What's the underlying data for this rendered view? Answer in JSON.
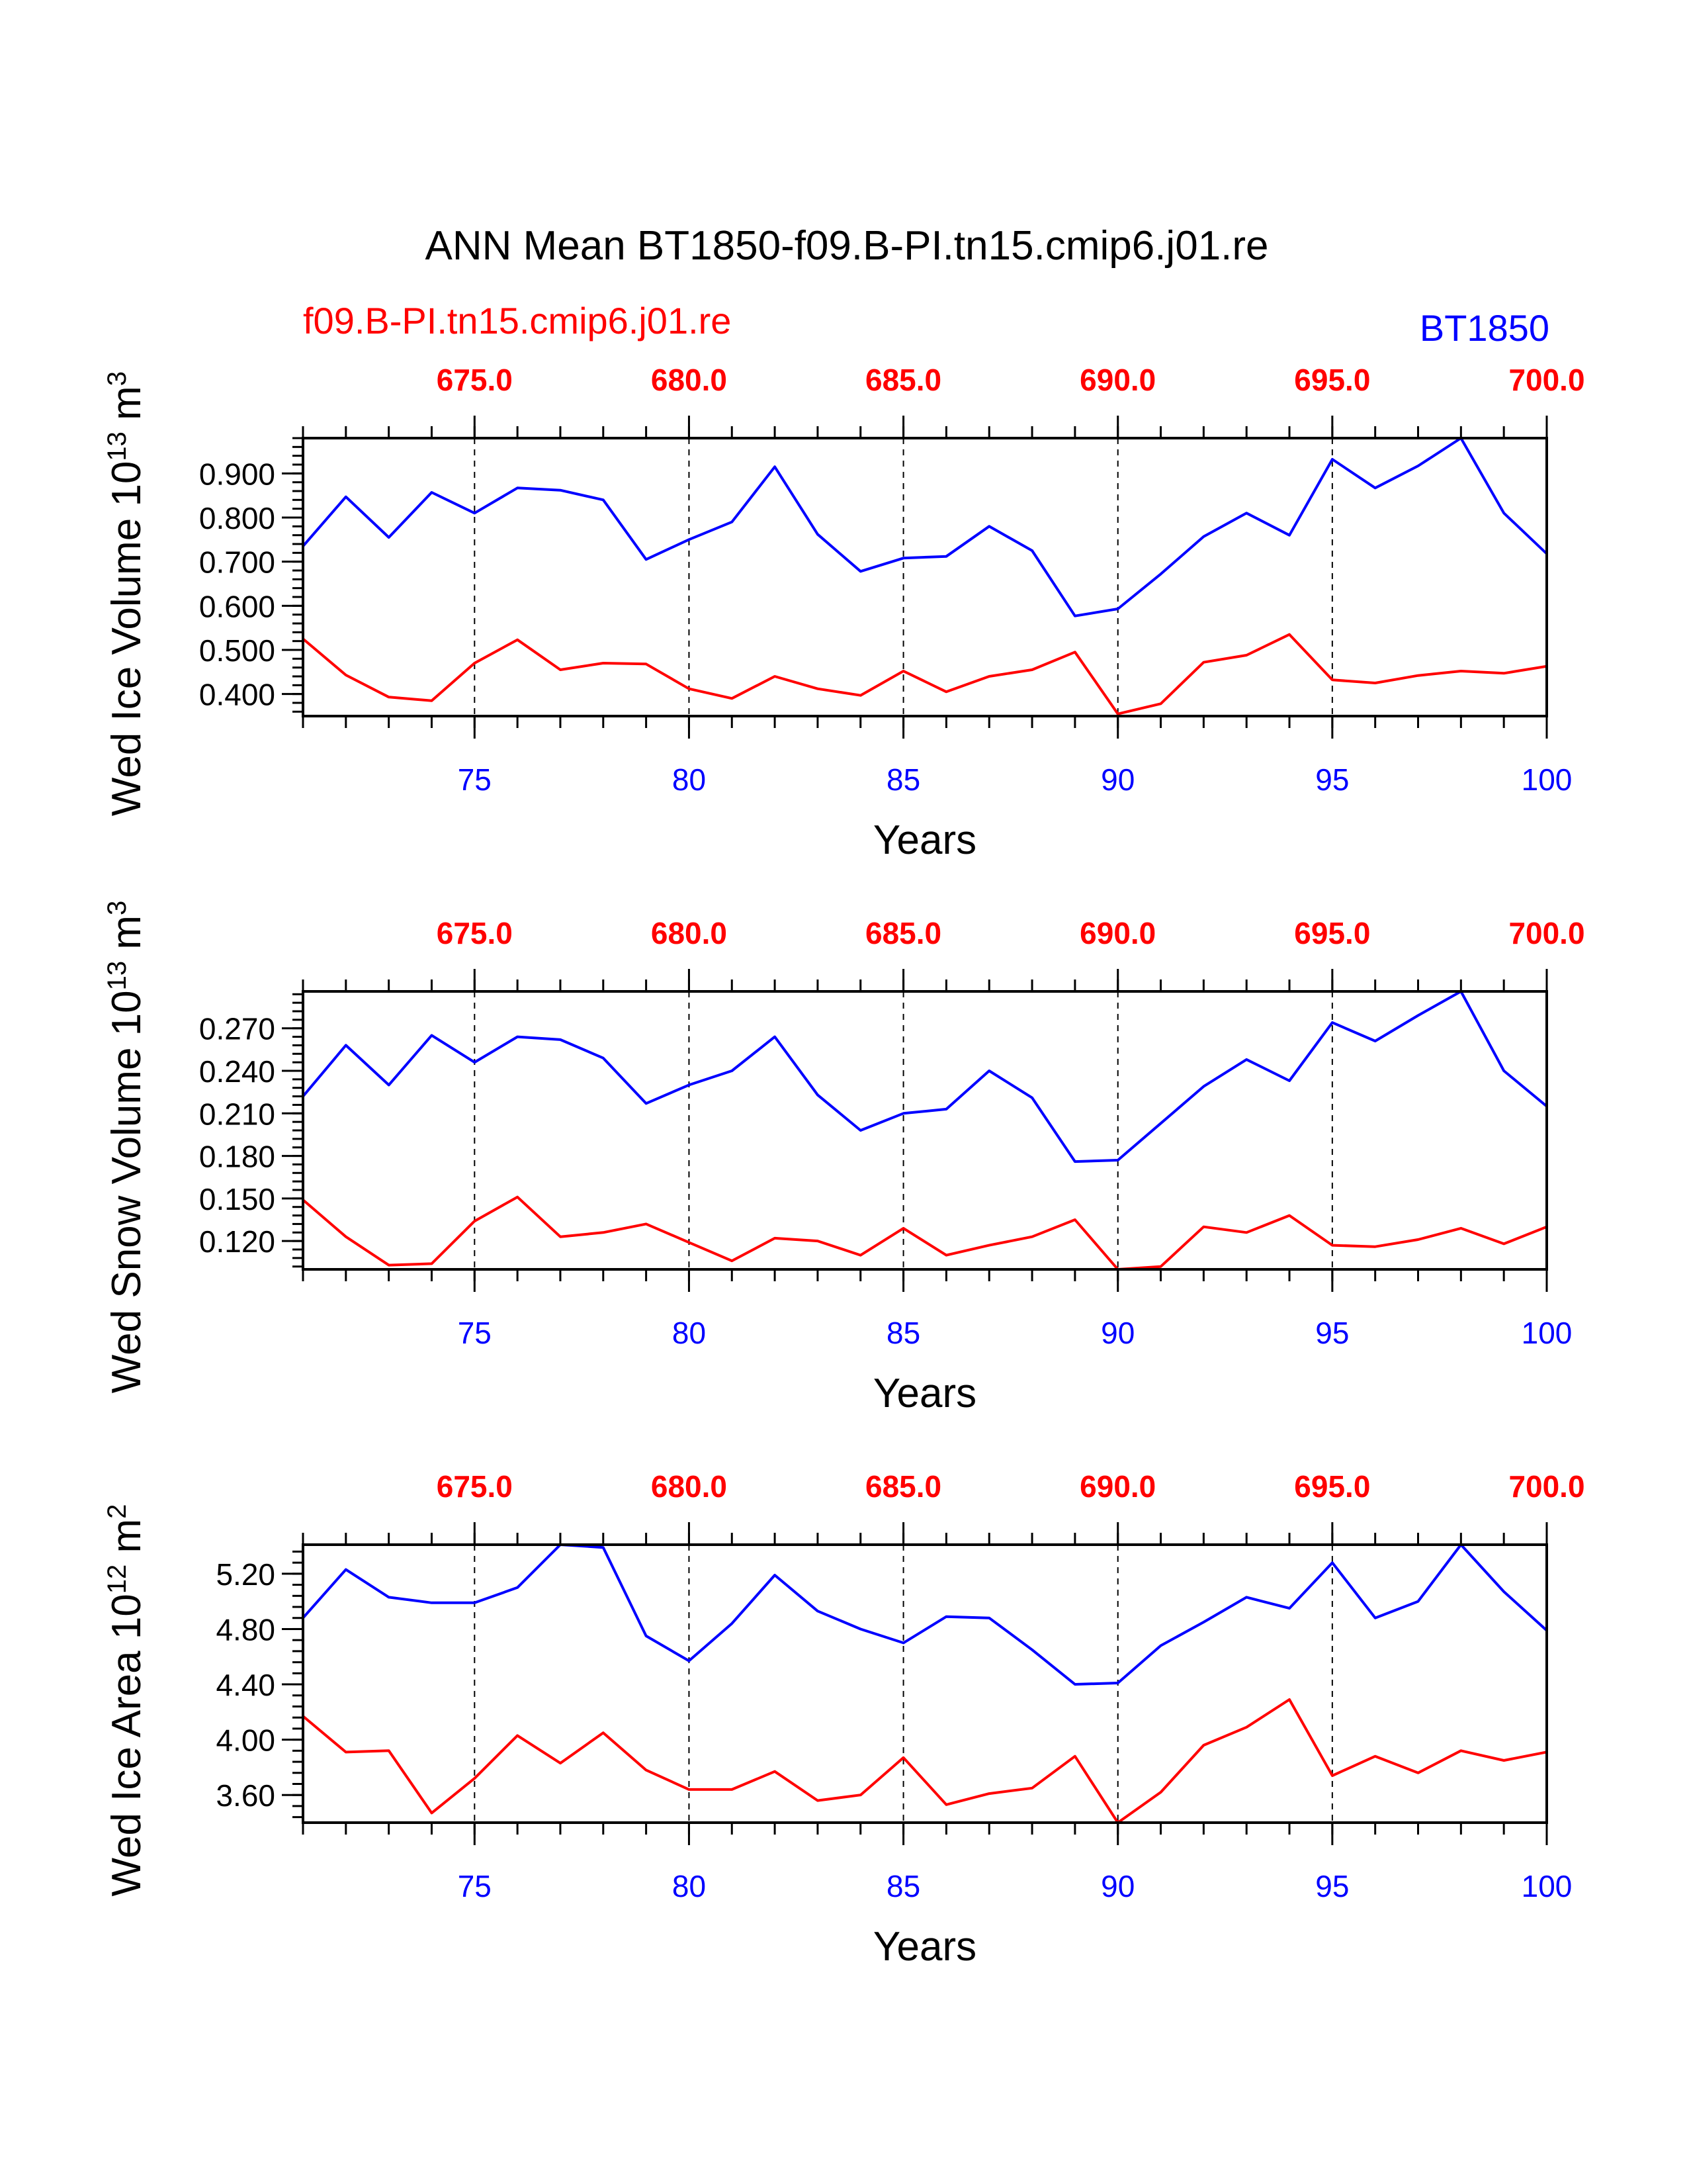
{
  "header": {
    "title": "ANN Mean BT1850-f09.B-PI.tn15.cmip6.j01.re",
    "case_left": "f09.B-PI.tn15.cmip6.j01.re",
    "case_right": "BT1850"
  },
  "colors": {
    "case_left": "#ff0000",
    "case_right": "#0000ff",
    "axis": "#000000"
  },
  "chart_data": [
    {
      "type": "line",
      "ylabel": "Wed Ice Volume 10",
      "ylabel_exp": "13",
      "ylabel_unit": " m",
      "ylabel_unit_exp": "3",
      "xlabel": "Years",
      "xlim": [
        71,
        100
      ],
      "ylim": [
        0.35,
        0.98
      ],
      "yticks": [
        0.4,
        0.5,
        0.6,
        0.7,
        0.8,
        0.9
      ],
      "ytick_labels": [
        "0.400",
        "0.500",
        "0.600",
        "0.700",
        "0.800",
        "0.900"
      ],
      "yminor": 0.02,
      "xticks": [
        75,
        80,
        85,
        90,
        95,
        100
      ],
      "xtick_labels": [
        "75",
        "80",
        "85",
        "90",
        "95",
        "100"
      ],
      "xtop_ticks": [
        75,
        80,
        85,
        90,
        95,
        100
      ],
      "xtop_labels": [
        "675.0",
        "680.0",
        "685.0",
        "690.0",
        "695.0",
        "700.0"
      ],
      "vlines": [
        75,
        80,
        85,
        90,
        95
      ],
      "x": [
        71,
        72,
        73,
        74,
        75,
        76,
        77,
        78,
        79,
        80,
        81,
        82,
        83,
        84,
        85,
        86,
        87,
        88,
        89,
        90,
        91,
        92,
        93,
        94,
        95,
        96,
        97,
        98,
        99,
        100
      ],
      "series": [
        {
          "name": "BT1850",
          "color": "#0000ff",
          "values": [
            0.735,
            0.847,
            0.755,
            0.857,
            0.81,
            0.867,
            0.862,
            0.84,
            0.705,
            0.75,
            0.79,
            0.915,
            0.762,
            0.678,
            0.708,
            0.712,
            0.78,
            0.725,
            0.577,
            0.593,
            0.672,
            0.757,
            0.81,
            0.76,
            0.932,
            0.867,
            0.917,
            0.98,
            0.81,
            0.718
          ]
        },
        {
          "name": "f09.B-PI.tn15.cmip6.j01.re",
          "color": "#ff0000",
          "values": [
            0.525,
            0.443,
            0.393,
            0.385,
            0.47,
            0.523,
            0.455,
            0.47,
            0.468,
            0.412,
            0.39,
            0.44,
            0.412,
            0.397,
            0.452,
            0.405,
            0.44,
            0.455,
            0.495,
            0.355,
            0.378,
            0.472,
            0.488,
            0.535,
            0.432,
            0.425,
            0.442,
            0.452,
            0.447,
            0.463
          ]
        }
      ]
    },
    {
      "type": "line",
      "ylabel": "Wed Snow Volume 10",
      "ylabel_exp": "13",
      "ylabel_unit": " m",
      "ylabel_unit_exp": "3",
      "xlabel": "Years",
      "xlim": [
        71,
        100
      ],
      "ylim": [
        0.1,
        0.296
      ],
      "yticks": [
        0.12,
        0.15,
        0.18,
        0.21,
        0.24,
        0.27
      ],
      "ytick_labels": [
        "0.120",
        "0.150",
        "0.180",
        "0.210",
        "0.240",
        "0.270"
      ],
      "yminor": 0.006,
      "xticks": [
        75,
        80,
        85,
        90,
        95,
        100
      ],
      "xtick_labels": [
        "75",
        "80",
        "85",
        "90",
        "95",
        "100"
      ],
      "xtop_ticks": [
        75,
        80,
        85,
        90,
        95,
        100
      ],
      "xtop_labels": [
        "675.0",
        "680.0",
        "685.0",
        "690.0",
        "695.0",
        "700.0"
      ],
      "vlines": [
        75,
        80,
        85,
        90,
        95
      ],
      "x": [
        71,
        72,
        73,
        74,
        75,
        76,
        77,
        78,
        79,
        80,
        81,
        82,
        83,
        84,
        85,
        86,
        87,
        88,
        89,
        90,
        91,
        92,
        93,
        94,
        95,
        96,
        97,
        98,
        99,
        100
      ],
      "series": [
        {
          "name": "BT1850",
          "color": "#0000ff",
          "values": [
            0.222,
            0.258,
            0.23,
            0.265,
            0.246,
            0.264,
            0.262,
            0.249,
            0.217,
            0.23,
            0.24,
            0.264,
            0.223,
            0.198,
            0.21,
            0.213,
            0.24,
            0.221,
            0.176,
            0.177,
            0.203,
            0.229,
            0.248,
            0.233,
            0.274,
            0.261,
            0.279,
            0.296,
            0.24,
            0.215
          ]
        },
        {
          "name": "f09.B-PI.tn15.cmip6.j01.re",
          "color": "#ff0000",
          "values": [
            0.149,
            0.123,
            0.103,
            0.104,
            0.134,
            0.151,
            0.123,
            0.126,
            0.132,
            0.119,
            0.106,
            0.122,
            0.12,
            0.11,
            0.129,
            0.11,
            0.117,
            0.123,
            0.135,
            0.1,
            0.102,
            0.13,
            0.126,
            0.138,
            0.117,
            0.116,
            0.121,
            0.129,
            0.118,
            0.13
          ]
        }
      ]
    },
    {
      "type": "line",
      "ylabel": "Wed Ice Area 10",
      "ylabel_exp": "12",
      "ylabel_unit": " m",
      "ylabel_unit_exp": "2",
      "xlabel": "Years",
      "xlim": [
        71,
        100
      ],
      "ylim": [
        3.4,
        5.41
      ],
      "yticks": [
        3.6,
        4.0,
        4.4,
        4.8,
        5.2
      ],
      "ytick_labels": [
        "3.60",
        "4.00",
        "4.40",
        "4.80",
        "5.20"
      ],
      "yminor": 0.08,
      "xticks": [
        75,
        80,
        85,
        90,
        95,
        100
      ],
      "xtick_labels": [
        "75",
        "80",
        "85",
        "90",
        "95",
        "100"
      ],
      "xtop_ticks": [
        75,
        80,
        85,
        90,
        95,
        100
      ],
      "xtop_labels": [
        "675.0",
        "680.0",
        "685.0",
        "690.0",
        "695.0",
        "700.0"
      ],
      "vlines": [
        75,
        80,
        85,
        90,
        95
      ],
      "x": [
        71,
        72,
        73,
        74,
        75,
        76,
        77,
        78,
        79,
        80,
        81,
        82,
        83,
        84,
        85,
        86,
        87,
        88,
        89,
        90,
        91,
        92,
        93,
        94,
        95,
        96,
        97,
        98,
        99,
        100
      ],
      "series": [
        {
          "name": "BT1850",
          "color": "#0000ff",
          "values": [
            4.88,
            5.23,
            5.03,
            4.99,
            4.99,
            5.1,
            5.41,
            5.39,
            4.75,
            4.57,
            4.84,
            5.19,
            4.93,
            4.8,
            4.7,
            4.89,
            4.88,
            4.65,
            4.4,
            4.41,
            4.68,
            4.85,
            5.03,
            4.95,
            5.28,
            4.88,
            5.0,
            5.41,
            5.07,
            4.79
          ]
        },
        {
          "name": "f09.B-PI.tn15.cmip6.j01.re",
          "color": "#ff0000",
          "values": [
            4.17,
            3.91,
            3.92,
            3.47,
            3.72,
            4.03,
            3.83,
            4.05,
            3.78,
            3.64,
            3.64,
            3.77,
            3.56,
            3.6,
            3.87,
            3.53,
            3.61,
            3.65,
            3.88,
            3.4,
            3.62,
            3.96,
            4.09,
            4.29,
            3.74,
            3.88,
            3.76,
            3.92,
            3.85,
            3.91
          ]
        }
      ]
    }
  ]
}
